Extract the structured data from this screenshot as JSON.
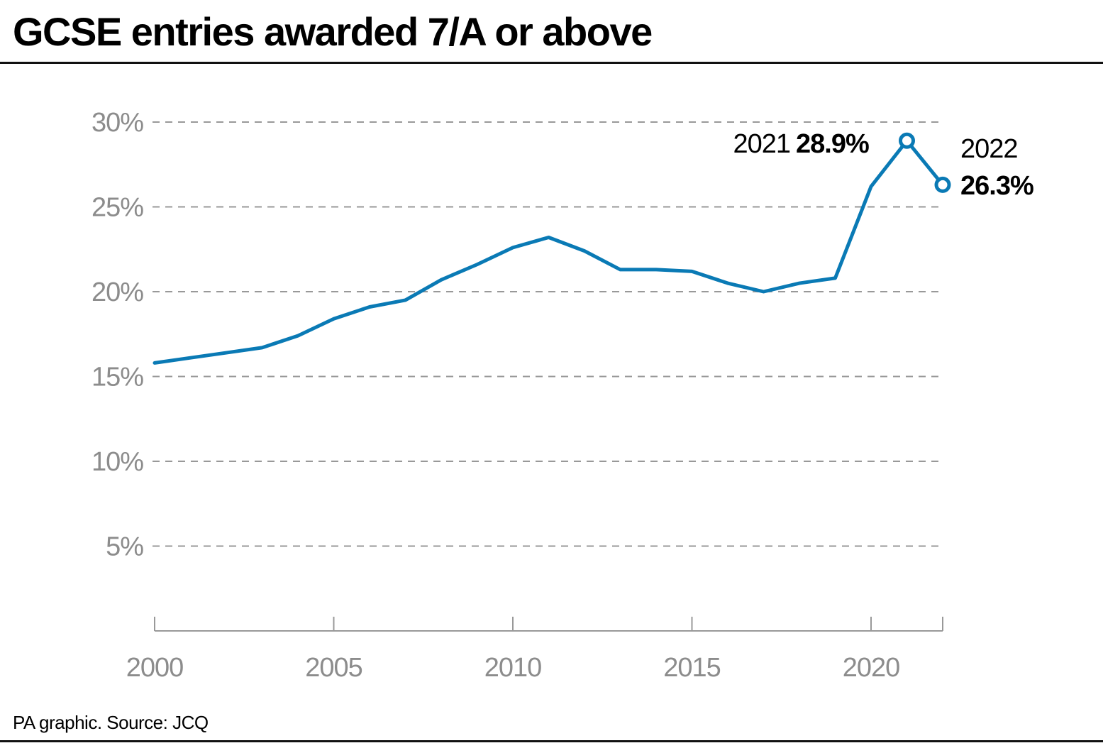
{
  "title": "GCSE entries awarded 7/A or above",
  "source": "PA graphic. Source: JCQ",
  "colors": {
    "line": "#0a7ab5",
    "grid": "#999999",
    "axis": "#999999",
    "tick_label": "#8c8c8c"
  },
  "chart_data": {
    "type": "line",
    "title": "GCSE entries awarded 7/A or above",
    "xlabel": "",
    "ylabel": "",
    "x": [
      2000,
      2001,
      2002,
      2003,
      2004,
      2005,
      2006,
      2007,
      2008,
      2009,
      2010,
      2011,
      2012,
      2013,
      2014,
      2015,
      2016,
      2017,
      2018,
      2019,
      2020,
      2021,
      2022
    ],
    "series": [
      {
        "values": [
          15.8,
          16.1,
          16.4,
          16.7,
          17.4,
          18.4,
          19.1,
          19.5,
          20.7,
          21.6,
          22.6,
          23.2,
          22.4,
          21.3,
          21.3,
          21.2,
          20.5,
          20.0,
          20.5,
          20.8,
          26.2,
          28.9,
          26.3
        ]
      }
    ],
    "xlim": [
      2000,
      2022
    ],
    "ylim": [
      0,
      30
    ],
    "x_ticks": [
      2000,
      2005,
      2010,
      2015,
      2020
    ],
    "x_tick_labels": [
      "2000",
      "2005",
      "2010",
      "2015",
      "2020"
    ],
    "y_ticks": [
      5,
      10,
      15,
      20,
      25,
      30
    ],
    "y_tick_labels": [
      "5%",
      "10%",
      "15%",
      "20%",
      "25%",
      "30%"
    ],
    "grid": "horizontal dashed",
    "annotations": [
      {
        "x": 2021,
        "y": 28.9,
        "year": "2021",
        "value": "28.9%",
        "marker": "open-circle"
      },
      {
        "x": 2022,
        "y": 26.3,
        "year": "2022",
        "value": "26.3%",
        "marker": "open-circle"
      }
    ]
  }
}
